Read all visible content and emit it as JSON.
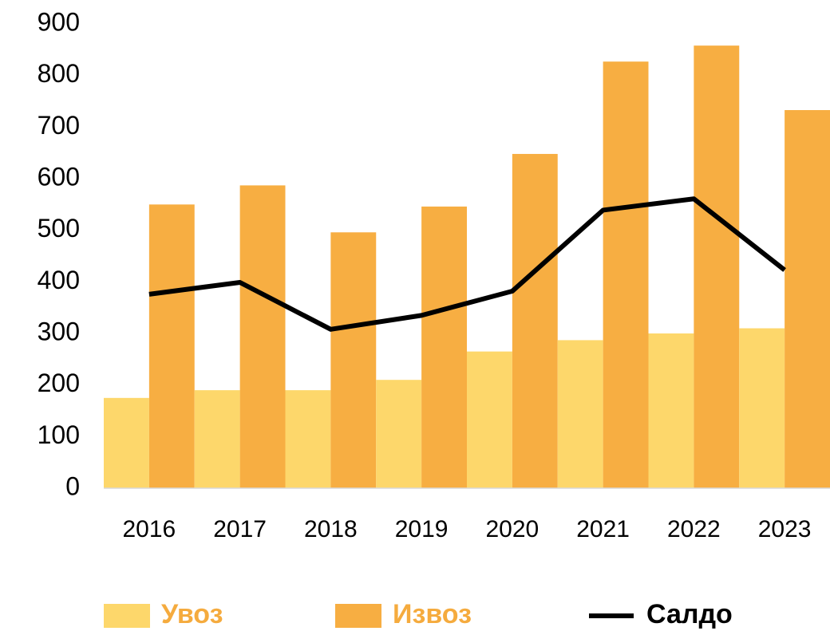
{
  "chart_data": {
    "type": "bar",
    "categories": [
      "2016",
      "2017",
      "2018",
      "2019",
      "2020",
      "2021",
      "2022",
      "2023"
    ],
    "series": [
      {
        "name": "Увоз",
        "color": "#fdd76b",
        "legend_text_color": "#f5ab3e",
        "values": [
          175,
          190,
          190,
          210,
          265,
          287,
          300,
          310
        ]
      },
      {
        "name": "Извоз",
        "color": "#f7ae42",
        "legend_text_color": "#f5ab3e",
        "values": [
          550,
          587,
          496,
          546,
          648,
          827,
          858,
          733
        ]
      },
      {
        "name": "Салдо",
        "type": "line",
        "color": "#000000",
        "legend_text_color": "#000000",
        "values": [
          376,
          399,
          308,
          335,
          382,
          539,
          561,
          423
        ]
      }
    ],
    "ylim": [
      0,
      900
    ],
    "yticks": [
      0,
      100,
      200,
      300,
      400,
      500,
      600,
      700,
      800,
      900
    ],
    "grid": false,
    "legend": "bottom"
  }
}
